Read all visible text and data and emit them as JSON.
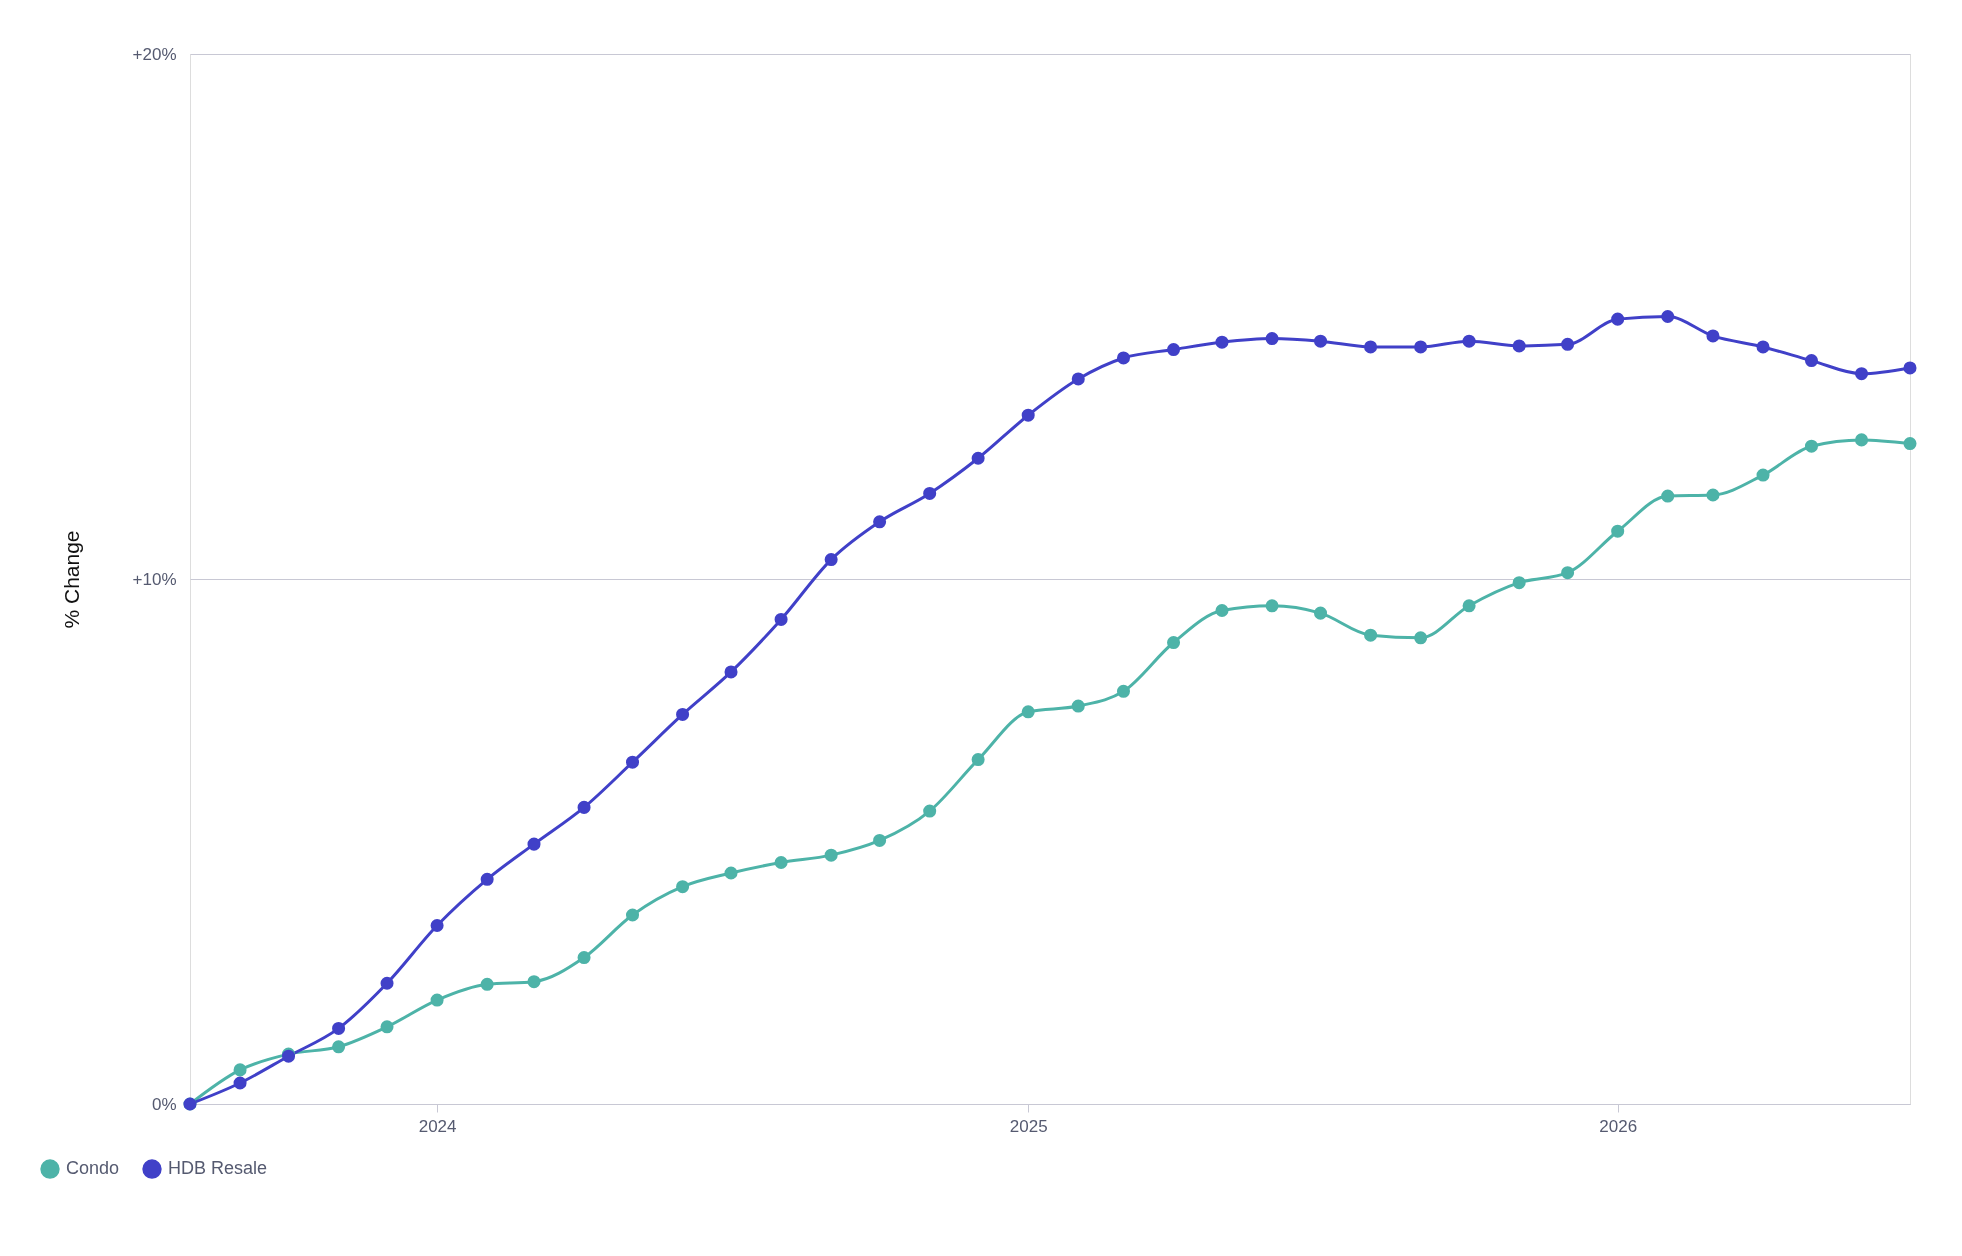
{
  "chart_data": {
    "type": "line",
    "ylabel": "% Change",
    "x": [
      "2023-08",
      "2023-09",
      "2023-10",
      "2023-11",
      "2023-12",
      "2024-01",
      "2024-02",
      "2024-03",
      "2024-04",
      "2024-05",
      "2024-06",
      "2024-07",
      "2024-08",
      "2024-09",
      "2024-10",
      "2024-11",
      "2024-12",
      "2025-01",
      "2025-02",
      "2025-03",
      "2025-04",
      "2025-05",
      "2025-06",
      "2025-07",
      "2025-08",
      "2025-09",
      "2025-10",
      "2025-11",
      "2025-12",
      "2026-01",
      "2026-02",
      "2026-03",
      "2026-04",
      "2026-05",
      "2026-06",
      "2026-07"
    ],
    "series": [
      {
        "name": "Condo",
        "color": "#4db3a8",
        "values": [
          0,
          0.65,
          0.95,
          1.09,
          1.47,
          1.98,
          2.28,
          2.33,
          2.79,
          3.6,
          4.14,
          4.4,
          4.6,
          4.74,
          5.02,
          5.58,
          6.56,
          7.47,
          7.58,
          7.86,
          8.79,
          9.4,
          9.49,
          9.35,
          8.93,
          8.88,
          9.49,
          9.93,
          10.12,
          10.91,
          11.58,
          11.6,
          11.98,
          12.53,
          12.65,
          12.58
        ]
      },
      {
        "name": "HDB Resale",
        "color": "#4040c8",
        "values": [
          0,
          0.4,
          0.91,
          1.44,
          2.3,
          3.4,
          4.28,
          4.95,
          5.65,
          6.51,
          7.42,
          8.23,
          9.23,
          10.37,
          11.09,
          11.63,
          12.3,
          13.12,
          13.81,
          14.21,
          14.37,
          14.51,
          14.58,
          14.53,
          14.42,
          14.42,
          14.53,
          14.44,
          14.47,
          14.95,
          15.0,
          14.63,
          14.42,
          14.16,
          13.91,
          14.02
        ]
      }
    ],
    "xlim": [
      "2023-08",
      "2026-07"
    ],
    "xticks": [
      {
        "value": "2024",
        "label": "2024"
      },
      {
        "value": "2025",
        "label": "2025"
      },
      {
        "value": "2026",
        "label": "2026"
      }
    ],
    "ylim": [
      0,
      20
    ],
    "yticks": [
      {
        "value": 0,
        "label": "0%"
      },
      {
        "value": 10,
        "label": "+10%"
      },
      {
        "value": 20,
        "label": "+20%"
      }
    ],
    "grid": "y",
    "legend": "bottom left",
    "marker": "circle",
    "line_style": "solid"
  }
}
